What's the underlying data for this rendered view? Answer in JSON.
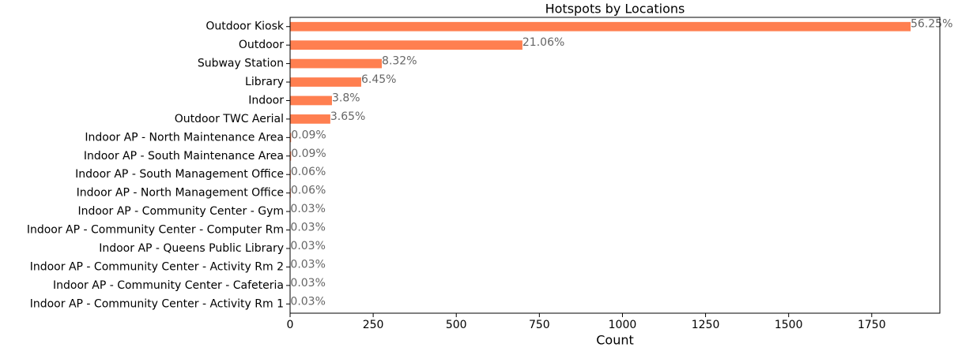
{
  "chart_data": {
    "type": "barh",
    "title": "Hotspots by Locations",
    "xlabel": "Count",
    "categories": [
      "Outdoor Kiosk",
      "Outdoor",
      "Subway Station",
      "Library",
      "Indoor",
      "Outdoor TWC Aerial",
      "Indoor AP - North Maintenance Area",
      "Indoor AP - South Maintenance Area",
      "Indoor AP - South Management Office",
      "Indoor AP - North Management Office",
      "Indoor AP - Community Center - Gym",
      "Indoor AP - Community Center - Computer Rm",
      "Indoor AP - Queens Public Library",
      "Indoor AP - Community Center - Activity Rm 2",
      "Indoor AP - Community Center - Cafeteria",
      "Indoor AP - Community Center - Activity Rm 1"
    ],
    "values": [
      1867,
      699,
      276,
      214,
      126,
      121,
      3,
      3,
      2,
      2,
      1,
      1,
      1,
      1,
      1,
      1
    ],
    "value_labels": [
      "56.25%",
      "21.06%",
      "8.32%",
      "6.45%",
      "3.8%",
      "3.65%",
      "0.09%",
      "0.09%",
      "0.06%",
      "0.06%",
      "0.03%",
      "0.03%",
      "0.03%",
      "0.03%",
      "0.03%",
      "0.03%"
    ],
    "color": "#ff7f50",
    "xlim": [
      0,
      1955
    ],
    "xticks": [
      0,
      250,
      500,
      750,
      1000,
      1250,
      1500,
      1750
    ]
  }
}
